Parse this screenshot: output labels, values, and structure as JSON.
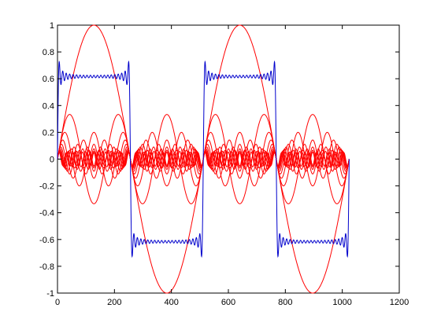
{
  "chart_data": {
    "type": "line",
    "title": "",
    "xlabel": "",
    "ylabel": "",
    "xlim": [
      0,
      1200
    ],
    "ylim": [
      -1,
      1
    ],
    "x_ticks": [
      0,
      200,
      400,
      600,
      800,
      1000,
      1200
    ],
    "y_ticks": [
      -1,
      -0.8,
      -0.6,
      -0.4,
      -0.2,
      0,
      0.2,
      0.4,
      0.6,
      0.8,
      1
    ],
    "x_tick_labels": [
      "0",
      "200",
      "400",
      "600",
      "800",
      "1000",
      "1200"
    ],
    "y_tick_labels": [
      "-1",
      "-0.8",
      "-0.6",
      "-0.4",
      "-0.2",
      "0",
      "0.2",
      "0.4",
      "0.6",
      "0.8",
      "1"
    ],
    "grid": false,
    "legend": "none",
    "x_range": [
      0,
      1024
    ],
    "series": [
      {
        "color": "#0000cc",
        "kind": "partial-sum-square-wave",
        "period": 512,
        "amplitude": 0.785,
        "odd_harmonics": 21
      },
      {
        "color": "#ff0000",
        "kind": "individual-odd-harmonics",
        "period": 512,
        "harmonics": [
          1,
          3,
          5,
          7,
          9,
          11,
          13,
          15,
          17,
          19,
          21
        ],
        "amplitude_scale": 1.0
      }
    ]
  }
}
